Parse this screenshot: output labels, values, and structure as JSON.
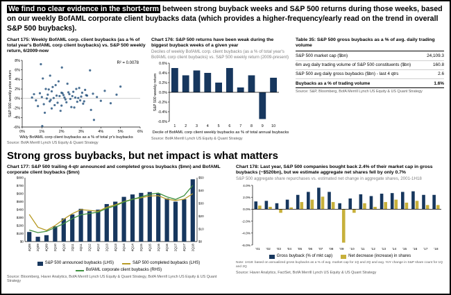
{
  "page": {
    "headline_highlight": "We find no clear evidence in the short-term",
    "headline_rest": " between strong buyback weeks and S&P 500 returns during those weeks, based on our weekly BofAML corporate client buybacks data (which provides a higher-frequency/early read on the trend in overall S&P 500 buybacks).",
    "section2_title": "Strong gross buybacks, but net impact is what matters"
  },
  "colors": {
    "navy": "#17375e",
    "scatter_point": "#1f4e79",
    "gold": "#b89b25",
    "green": "#3f9140",
    "highlight_bg": "#000000",
    "subtitle_gray": "#7f7f7f"
  },
  "chart_data": [
    {
      "id": "chart175",
      "type": "scatter",
      "title": "Chart 175: Weekly BofAML corp. client buybacks (as a % of total year's BofAML corp client buybacks) vs. S&P 500 weekly return, 6/2009-now",
      "r2_label": "R² = 0.0078",
      "ylabel": "S&P 500 weekly price return",
      "xlabel": "Wkly BofAML corp client buybacks as a % of total yr's buybacks",
      "source": "Source: BofA Merrill Lynch US Equity & Quant Strategy",
      "xlim": [
        0,
        6
      ],
      "ylim": [
        -6,
        8
      ],
      "xticks": [
        0,
        1,
        2,
        3,
        4,
        5,
        6
      ],
      "yticks": [
        8,
        6,
        4,
        2,
        0,
        -2,
        -4,
        -6
      ],
      "point_color": "#1f4e79",
      "points": [
        [
          0.5,
          0.2
        ],
        [
          0.7,
          -0.4
        ],
        [
          0.9,
          1.1
        ],
        [
          1.0,
          0.3
        ],
        [
          1.1,
          -1.2
        ],
        [
          1.2,
          2.0
        ],
        [
          1.3,
          0.8
        ],
        [
          1.4,
          -0.6
        ],
        [
          1.5,
          1.5
        ],
        [
          1.5,
          -2.1
        ],
        [
          1.6,
          0.1
        ],
        [
          1.7,
          2.8
        ],
        [
          1.8,
          -0.9
        ],
        [
          1.9,
          0.5
        ],
        [
          2.0,
          1.2
        ],
        [
          2.0,
          -1.5
        ],
        [
          2.1,
          0.7
        ],
        [
          2.2,
          -0.2
        ],
        [
          2.3,
          3.1
        ],
        [
          2.4,
          0.9
        ],
        [
          2.5,
          -1.8
        ],
        [
          2.6,
          1.4
        ],
        [
          2.7,
          0.2
        ],
        [
          2.8,
          -0.7
        ],
        [
          2.9,
          2.2
        ],
        [
          3.0,
          0.4
        ],
        [
          3.1,
          -1.1
        ],
        [
          3.2,
          1.8
        ],
        [
          3.3,
          0.6
        ],
        [
          3.5,
          -2.4
        ],
        [
          3.6,
          1.0
        ],
        [
          3.8,
          0.3
        ],
        [
          4.0,
          -0.5
        ],
        [
          4.2,
          1.6
        ],
        [
          4.5,
          -1.0
        ],
        [
          4.8,
          0.8
        ],
        [
          5.0,
          2.5
        ],
        [
          0.6,
          0.9
        ],
        [
          0.8,
          -1.6
        ],
        [
          1.05,
          4.2
        ],
        [
          1.15,
          -3.0
        ],
        [
          1.25,
          0.0
        ],
        [
          1.35,
          1.9
        ],
        [
          1.45,
          -0.3
        ],
        [
          1.55,
          2.4
        ],
        [
          1.65,
          -1.4
        ],
        [
          1.75,
          0.6
        ],
        [
          1.85,
          3.6
        ],
        [
          1.95,
          -2.6
        ],
        [
          2.05,
          1.1
        ],
        [
          2.15,
          0.2
        ],
        [
          2.25,
          -0.8
        ],
        [
          2.35,
          1.3
        ],
        [
          2.45,
          -0.1
        ],
        [
          2.55,
          0.5
        ],
        [
          2.65,
          -1.9
        ],
        [
          2.75,
          2.0
        ],
        [
          2.85,
          0.1
        ],
        [
          2.95,
          -0.4
        ],
        [
          3.05,
          1.2
        ],
        [
          3.15,
          -0.6
        ],
        [
          3.25,
          0.7
        ],
        [
          3.45,
          5.9
        ],
        [
          3.65,
          -4.5
        ],
        [
          0.95,
          7.2
        ],
        [
          1.02,
          -5.8
        ],
        [
          2.02,
          6.5
        ],
        [
          1.42,
          4.8
        ]
      ]
    },
    {
      "id": "chart176",
      "type": "bar",
      "title": "Chart 176: S&P 500 returns have been weak during the biggest buyback weeks of a given year",
      "subtitle": "Deciles of weekly BofAML corp. client buybacks (as a % of total year's BofAML corp client buybacks) vs. S&P 500 weekly return (2009-present)",
      "ylabel": "S&P 500 weekly return",
      "xlabel": "Decile of BofAML corp client weekly buybacks as % of total annual buybacks",
      "source": "Source: BofA Merrill Lynch US Equity & Quant Strategy",
      "categories": [
        "1",
        "2",
        "3",
        "4",
        "5",
        "6",
        "7",
        "8",
        "9",
        "10"
      ],
      "values": [
        0.5,
        0.35,
        0.45,
        0.4,
        0.2,
        0.5,
        0.1,
        0.35,
        -0.55,
        0.3
      ],
      "ylim": [
        -0.6,
        0.6
      ],
      "yticks": [
        0.6,
        0.4,
        0.2,
        0.0,
        -0.2,
        -0.4,
        -0.6
      ],
      "bar_color": "#17375e"
    },
    {
      "id": "table35",
      "type": "table",
      "title": "Table 35: S&P 500 gross buybacks as a % of avg. daily trading volume",
      "rows": [
        {
          "label": "S&P 500 market cap ($bn)",
          "value": "24,109.3"
        },
        {
          "label": "6m avg daily trading volume of S&P 500 constituents ($bn)",
          "value": "160.8"
        },
        {
          "label": "S&P 500 avg daily gross buybacks ($bn) - last 4 qtrs",
          "value": "2.6"
        },
        {
          "label": "Buybacks as a % of trading volume",
          "value": "1.6%"
        }
      ],
      "source": "Source: S&P, Bloomberg, BofA Merrill Lynch US Equity & US Quant Strategy"
    },
    {
      "id": "chart177",
      "type": "combo-bar-line",
      "title": "Chart 177: S&P 500 trailing 4-qtr announced and completed gross buybacks ($mn) and BofAML corporate client buybacks ($mn)",
      "source": "Source: Bloomberg, Haver Analytics, BofA Merrill Lynch US Equity & Quant Strategy, BofA Merrill Lynch US Equity & US Quant Strategy",
      "categories": [
        "4Q08",
        "2Q09",
        "4Q09",
        "2Q10",
        "4Q10",
        "2Q11",
        "4Q11",
        "2Q12",
        "4Q12",
        "2Q13",
        "4Q13",
        "2Q14",
        "4Q14",
        "2Q15",
        "4Q15",
        "2Q16",
        "4Q16",
        "2Q17",
        "4Q17",
        "2Q18"
      ],
      "left_ylim": [
        0,
        800
      ],
      "left_yticks": [
        0,
        100,
        200,
        300,
        400,
        500,
        600,
        700,
        800
      ],
      "right_ylim": [
        0,
        50
      ],
      "right_yticks": [
        0,
        10,
        20,
        30,
        40,
        50
      ],
      "series": [
        {
          "name": "S&P 500 announced buybacks (LHS)",
          "type": "bar",
          "axis": "left",
          "color": "#17375e",
          "values": [
            120,
            60,
            80,
            190,
            290,
            340,
            410,
            380,
            400,
            470,
            500,
            560,
            590,
            610,
            620,
            600,
            540,
            500,
            530,
            780
          ]
        },
        {
          "name": "S&P 500 completed buybacks (LHS)",
          "type": "line",
          "axis": "left",
          "color": "#b89b25",
          "values": [
            340,
            180,
            140,
            200,
            280,
            350,
            400,
            390,
            380,
            430,
            460,
            500,
            530,
            550,
            570,
            575,
            530,
            515,
            530,
            600
          ]
        },
        {
          "name": "BofAML corporate client buybacks (RHS)",
          "type": "line",
          "axis": "right",
          "color": "#3f9140",
          "values": [
            9,
            7,
            8,
            11,
            14,
            18,
            21,
            22,
            23,
            26,
            28,
            31,
            33,
            35,
            37,
            38,
            35,
            33,
            36,
            44
          ]
        }
      ]
    },
    {
      "id": "chart178",
      "type": "grouped-bar",
      "title": "Chart 178: Last year, S&P 500 companies bought back 2.4% of their market cap in gross buybacks (~$520bn), but we estimate aggregate net shares fell by only 0.7%",
      "subtitle": "S&P 500 aggregate share repurchases vs. estimated net change in aggregate shares, 2001-1H18",
      "note": "Note: 1H18: based on annualized gross buybacks as a % of avg. market cap for 1Q and 2Q and avg. YoY change in S&P share count for 1Q and 2Q",
      "source": "Source: Haver Analytics, FactSet, BofA Merrill Lynch US Equity & US Quant Strategy",
      "categories": [
        "'01",
        "'02",
        "'03",
        "'04",
        "'05",
        "'06",
        "'07",
        "'08",
        "'09",
        "'10",
        "'11",
        "'12",
        "'13",
        "'14",
        "'15",
        "'16",
        "'17",
        "'18"
      ],
      "ylim": [
        -6,
        4
      ],
      "yticks": [
        4,
        2,
        0,
        -2,
        -4,
        -6
      ],
      "series": [
        {
          "name": "Gross buyback (% of mkt cap)",
          "color": "#17375e",
          "values": [
            1.3,
            1.4,
            1.0,
            1.6,
            2.4,
            2.9,
            3.6,
            2.9,
            1.0,
            1.8,
            2.5,
            2.2,
            2.6,
            2.7,
            2.9,
            3.0,
            2.4,
            2.4
          ]
        },
        {
          "name": "Net decrease (increase) in shares",
          "color": "#c7b03b",
          "values": [
            0.6,
            0.4,
            -0.6,
            0.3,
            1.2,
            1.6,
            2.1,
            1.2,
            -5.6,
            -0.6,
            1.0,
            0.4,
            1.2,
            1.6,
            1.1,
            1.4,
            0.7,
            0.7
          ]
        }
      ]
    }
  ]
}
